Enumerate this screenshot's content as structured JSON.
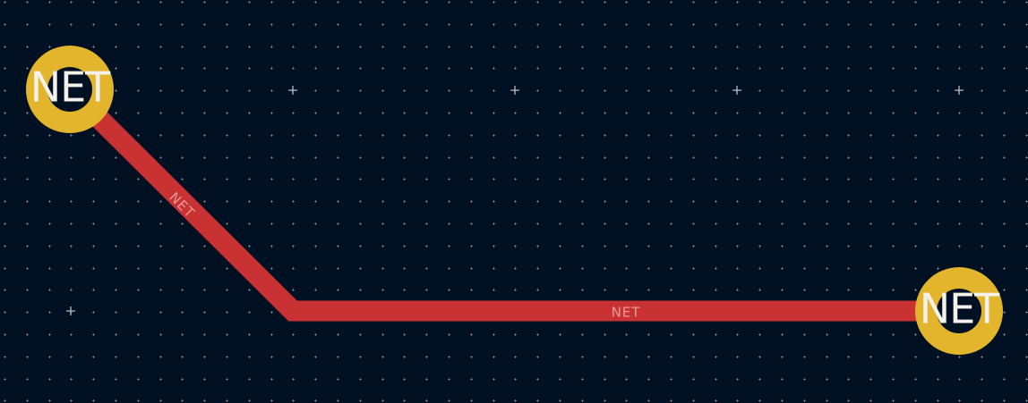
{
  "canvas": {
    "background_color": "#001023",
    "grid_dot_color": "#9aa6b2",
    "grid_cross_color": "#aeb8c2"
  },
  "trace": {
    "net_name": "NET",
    "color": "#c83232",
    "label_color": "#e79a98",
    "segments": [
      {
        "label": "NET"
      },
      {
        "label": "NET"
      }
    ]
  },
  "pads": [
    {
      "label": "NET",
      "color": "#e3b52c",
      "hole_color": "#001023"
    },
    {
      "label": "NET",
      "color": "#e3b52c",
      "hole_color": "#001023"
    }
  ]
}
